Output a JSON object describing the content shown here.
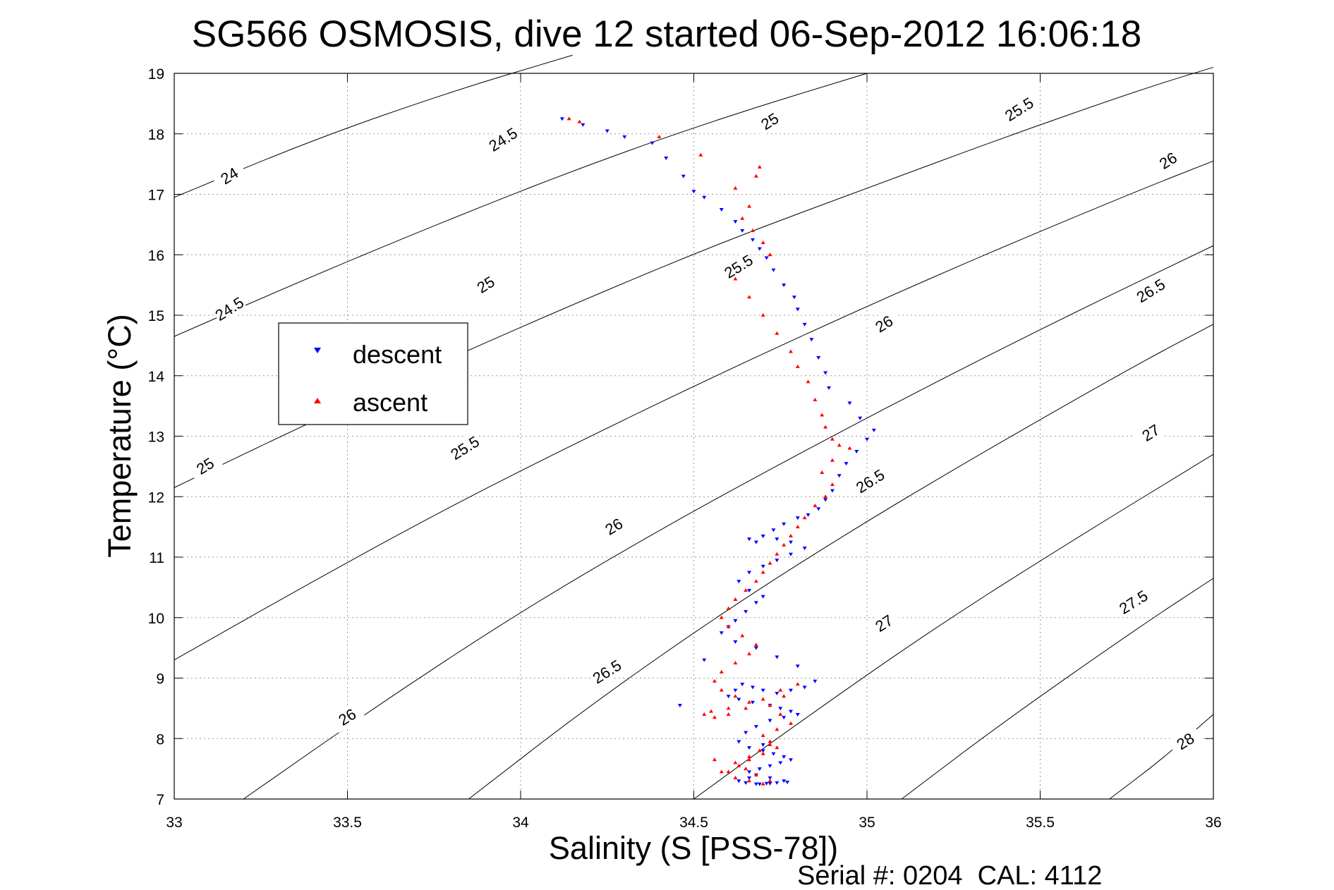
{
  "figure": {
    "title": "SG566 OSMOSIS, dive 12 started 06-Sep-2012 16:06:18",
    "footer": "Serial #: 0204  CAL: 4112"
  },
  "chart_data": {
    "type": "scatter",
    "title": "SG566 OSMOSIS, dive 12 started 06-Sep-2012 16:06:18",
    "xlabel": "Salinity (S [PSS-78])",
    "ylabel": "Temperature (°C)",
    "xlim": [
      33,
      36
    ],
    "ylim": [
      7,
      19
    ],
    "xticks": [
      "33",
      "33.5",
      "34",
      "34.5",
      "35",
      "35.5",
      "36"
    ],
    "yticks": [
      "7",
      "8",
      "9",
      "10",
      "11",
      "12",
      "13",
      "14",
      "15",
      "16",
      "17",
      "18",
      "19"
    ],
    "grid": true,
    "legend": {
      "placement": "left",
      "entries": [
        {
          "label": "descent",
          "color": "#0000ff",
          "marker": "triangle-down"
        },
        {
          "label": "ascent",
          "color": "#ff0000",
          "marker": "triangle-up"
        }
      ]
    },
    "contours": [
      {
        "label": "24",
        "points": [
          [
            33.0,
            16.95
          ],
          [
            33.4,
            17.9
          ],
          [
            33.8,
            18.7
          ],
          [
            34.15,
            19.3
          ]
        ],
        "label_at": [
          33.16,
          17.3
        ]
      },
      {
        "label": "24.5",
        "points": [
          [
            33.0,
            14.65
          ],
          [
            33.4,
            15.65
          ],
          [
            33.8,
            16.6
          ],
          [
            34.2,
            17.5
          ],
          [
            34.6,
            18.3
          ],
          [
            35.0,
            19.0
          ]
        ],
        "label_at": [
          33.16,
          15.1
        ],
        "label_at2": [
          33.95,
          17.9
        ]
      },
      {
        "label": "25",
        "points": [
          [
            33.0,
            12.15
          ],
          [
            33.4,
            13.25
          ],
          [
            33.8,
            14.3
          ],
          [
            34.2,
            15.3
          ],
          [
            34.6,
            16.25
          ],
          [
            35.0,
            17.1
          ],
          [
            35.4,
            17.95
          ],
          [
            35.8,
            18.75
          ],
          [
            36.0,
            19.1
          ]
        ],
        "label_at": [
          33.09,
          12.5
        ],
        "label_at2": [
          33.9,
          15.5
        ],
        "label_at3": [
          34.72,
          18.2
        ]
      },
      {
        "label": "25.5",
        "points": [
          [
            33.0,
            9.3
          ],
          [
            33.4,
            10.6
          ],
          [
            33.8,
            11.85
          ],
          [
            34.2,
            13.0
          ],
          [
            34.6,
            14.1
          ],
          [
            35.0,
            15.15
          ],
          [
            35.4,
            16.15
          ],
          [
            35.8,
            17.1
          ],
          [
            36.0,
            17.55
          ]
        ],
        "label_at": [
          33.84,
          12.8
        ],
        "label_at2": [
          34.63,
          15.8
        ],
        "label_at3": [
          35.44,
          18.4
        ]
      },
      {
        "label": "26",
        "points": [
          [
            33.2,
            7.0
          ],
          [
            33.6,
            8.6
          ],
          [
            34.0,
            10.1
          ],
          [
            34.4,
            11.45
          ],
          [
            34.8,
            12.7
          ],
          [
            35.2,
            13.9
          ],
          [
            35.6,
            15.05
          ],
          [
            36.0,
            16.15
          ]
        ],
        "label_at": [
          33.5,
          8.35
        ],
        "label_at2": [
          34.27,
          11.5
        ],
        "label_at3": [
          35.05,
          14.85
        ],
        "label_at4": [
          35.87,
          17.55
        ]
      },
      {
        "label": "26.5",
        "points": [
          [
            33.85,
            7.0
          ],
          [
            34.2,
            8.55
          ],
          [
            34.6,
            10.15
          ],
          [
            35.0,
            11.6
          ],
          [
            35.4,
            12.95
          ],
          [
            35.8,
            14.25
          ],
          [
            36.0,
            14.85
          ]
        ],
        "label_at": [
          34.25,
          9.1
        ],
        "label_at2": [
          35.01,
          12.25
        ],
        "label_at3": [
          35.82,
          15.4
        ]
      },
      {
        "label": "27",
        "points": [
          [
            34.5,
            7.0
          ],
          [
            34.8,
            8.25
          ],
          [
            35.2,
            9.85
          ],
          [
            35.6,
            11.3
          ],
          [
            36.0,
            12.7
          ]
        ],
        "label_at": [
          35.05,
          9.9
        ],
        "label_at2": [
          35.82,
          13.05
        ]
      },
      {
        "label": "27.5",
        "points": [
          [
            35.1,
            7.0
          ],
          [
            35.4,
            8.3
          ],
          [
            35.8,
            9.9
          ],
          [
            36.0,
            10.65
          ]
        ],
        "label_at": [
          35.77,
          10.25
        ]
      },
      {
        "label": "28",
        "points": [
          [
            35.7,
            7.0
          ],
          [
            35.85,
            7.65
          ],
          [
            36.0,
            8.4
          ]
        ],
        "label_at": [
          35.92,
          7.95
        ]
      }
    ],
    "series": [
      {
        "name": "descent",
        "color": "#0000ff",
        "marker": "triangle-down",
        "x": [
          34.12,
          34.18,
          34.25,
          34.3,
          34.38,
          34.42,
          34.47,
          34.5,
          34.53,
          34.58,
          34.62,
          34.64,
          34.67,
          34.69,
          34.71,
          34.73,
          34.76,
          34.79,
          34.8,
          34.82,
          34.84,
          34.86,
          34.88,
          34.89,
          34.95,
          34.98,
          35.02,
          35.0,
          34.97,
          34.94,
          34.92,
          34.9,
          34.88,
          34.86,
          34.83,
          34.8,
          34.76,
          34.73,
          34.7,
          34.68,
          34.66,
          34.7,
          34.74,
          34.78,
          34.82,
          34.78,
          34.74,
          34.7,
          34.66,
          34.63,
          34.66,
          34.7,
          34.68,
          34.65,
          34.62,
          34.6,
          34.58,
          34.62,
          34.68,
          34.74,
          34.8,
          34.85,
          34.82,
          34.78,
          34.74,
          34.7,
          34.67,
          34.64,
          34.62,
          34.6,
          34.63,
          34.67,
          34.72,
          34.75,
          34.78,
          34.8,
          34.76,
          34.72,
          34.68,
          34.65,
          34.63,
          34.66,
          34.7,
          34.73,
          34.76,
          34.78,
          34.75,
          34.72,
          34.69,
          34.66,
          34.68,
          34.72,
          34.76,
          34.77,
          34.74,
          34.71,
          34.68,
          34.65,
          34.63,
          34.66,
          34.69,
          34.72,
          34.7,
          34.46,
          34.53
        ],
        "y": [
          18.25,
          18.15,
          18.05,
          17.95,
          17.85,
          17.6,
          17.3,
          17.05,
          16.95,
          16.75,
          16.55,
          16.4,
          16.25,
          16.1,
          15.95,
          15.75,
          15.5,
          15.3,
          15.1,
          14.85,
          14.6,
          14.3,
          14.05,
          13.8,
          13.55,
          13.3,
          13.1,
          12.95,
          12.75,
          12.55,
          12.35,
          12.1,
          11.95,
          11.8,
          11.7,
          11.65,
          11.55,
          11.45,
          11.35,
          11.25,
          11.3,
          11.35,
          11.3,
          11.25,
          11.15,
          11.05,
          10.95,
          10.85,
          10.75,
          10.6,
          10.45,
          10.35,
          10.25,
          10.1,
          9.95,
          9.85,
          9.75,
          9.6,
          9.5,
          9.35,
          9.2,
          8.95,
          8.85,
          8.8,
          8.75,
          8.8,
          8.85,
          8.9,
          8.8,
          8.7,
          8.65,
          8.6,
          8.55,
          8.5,
          8.45,
          8.4,
          8.35,
          8.3,
          8.2,
          8.1,
          7.95,
          7.85,
          7.8,
          7.75,
          7.7,
          7.65,
          7.6,
          7.55,
          7.5,
          7.45,
          7.4,
          7.35,
          7.3,
          7.28,
          7.27,
          7.26,
          7.25,
          7.27,
          7.3,
          7.35,
          7.25,
          7.26,
          7.9,
          8.55,
          9.3
        ]
      },
      {
        "name": "ascent",
        "color": "#ff0000",
        "marker": "triangle-up",
        "x": [
          34.14,
          34.17,
          34.4,
          34.52,
          34.62,
          34.68,
          34.69,
          34.66,
          34.64,
          34.67,
          34.7,
          34.72,
          34.62,
          34.66,
          34.7,
          34.74,
          34.78,
          34.8,
          34.83,
          34.85,
          34.87,
          34.88,
          34.9,
          34.92,
          34.95,
          34.9,
          34.87,
          34.9,
          34.88,
          34.85,
          34.82,
          34.8,
          34.78,
          34.76,
          34.74,
          34.72,
          34.7,
          34.68,
          34.65,
          34.62,
          34.6,
          34.58,
          34.6,
          34.64,
          34.68,
          34.66,
          34.62,
          34.58,
          34.56,
          34.58,
          34.62,
          34.66,
          34.6,
          34.55,
          34.53,
          34.56,
          34.6,
          34.65,
          34.7,
          34.75,
          34.8,
          34.76,
          34.72,
          34.75,
          34.78,
          34.74,
          34.7,
          34.72,
          34.74,
          34.7,
          34.66,
          34.63,
          34.6,
          34.62,
          34.66,
          34.7,
          34.72,
          34.68,
          34.65,
          34.62,
          34.66,
          34.69,
          34.72,
          34.56,
          34.58
        ],
        "y": [
          18.25,
          18.2,
          17.95,
          17.65,
          17.1,
          17.3,
          17.45,
          16.8,
          16.6,
          16.4,
          16.2,
          16.0,
          15.6,
          15.3,
          15.0,
          14.7,
          14.4,
          14.15,
          13.9,
          13.6,
          13.35,
          13.15,
          12.95,
          12.85,
          12.8,
          12.6,
          12.4,
          12.2,
          12.0,
          11.85,
          11.65,
          11.5,
          11.35,
          11.2,
          11.05,
          10.9,
          10.75,
          10.6,
          10.45,
          10.3,
          10.15,
          10.0,
          9.85,
          9.7,
          9.55,
          9.4,
          9.25,
          9.1,
          8.95,
          8.8,
          8.7,
          8.6,
          8.5,
          8.45,
          8.4,
          8.35,
          8.4,
          8.5,
          8.65,
          8.8,
          8.9,
          8.7,
          8.55,
          8.4,
          8.25,
          8.15,
          8.05,
          7.95,
          7.85,
          7.75,
          7.65,
          7.55,
          7.45,
          7.35,
          7.3,
          7.25,
          7.3,
          7.4,
          7.5,
          7.6,
          7.7,
          7.8,
          7.9,
          7.65,
          7.45
        ]
      }
    ]
  }
}
